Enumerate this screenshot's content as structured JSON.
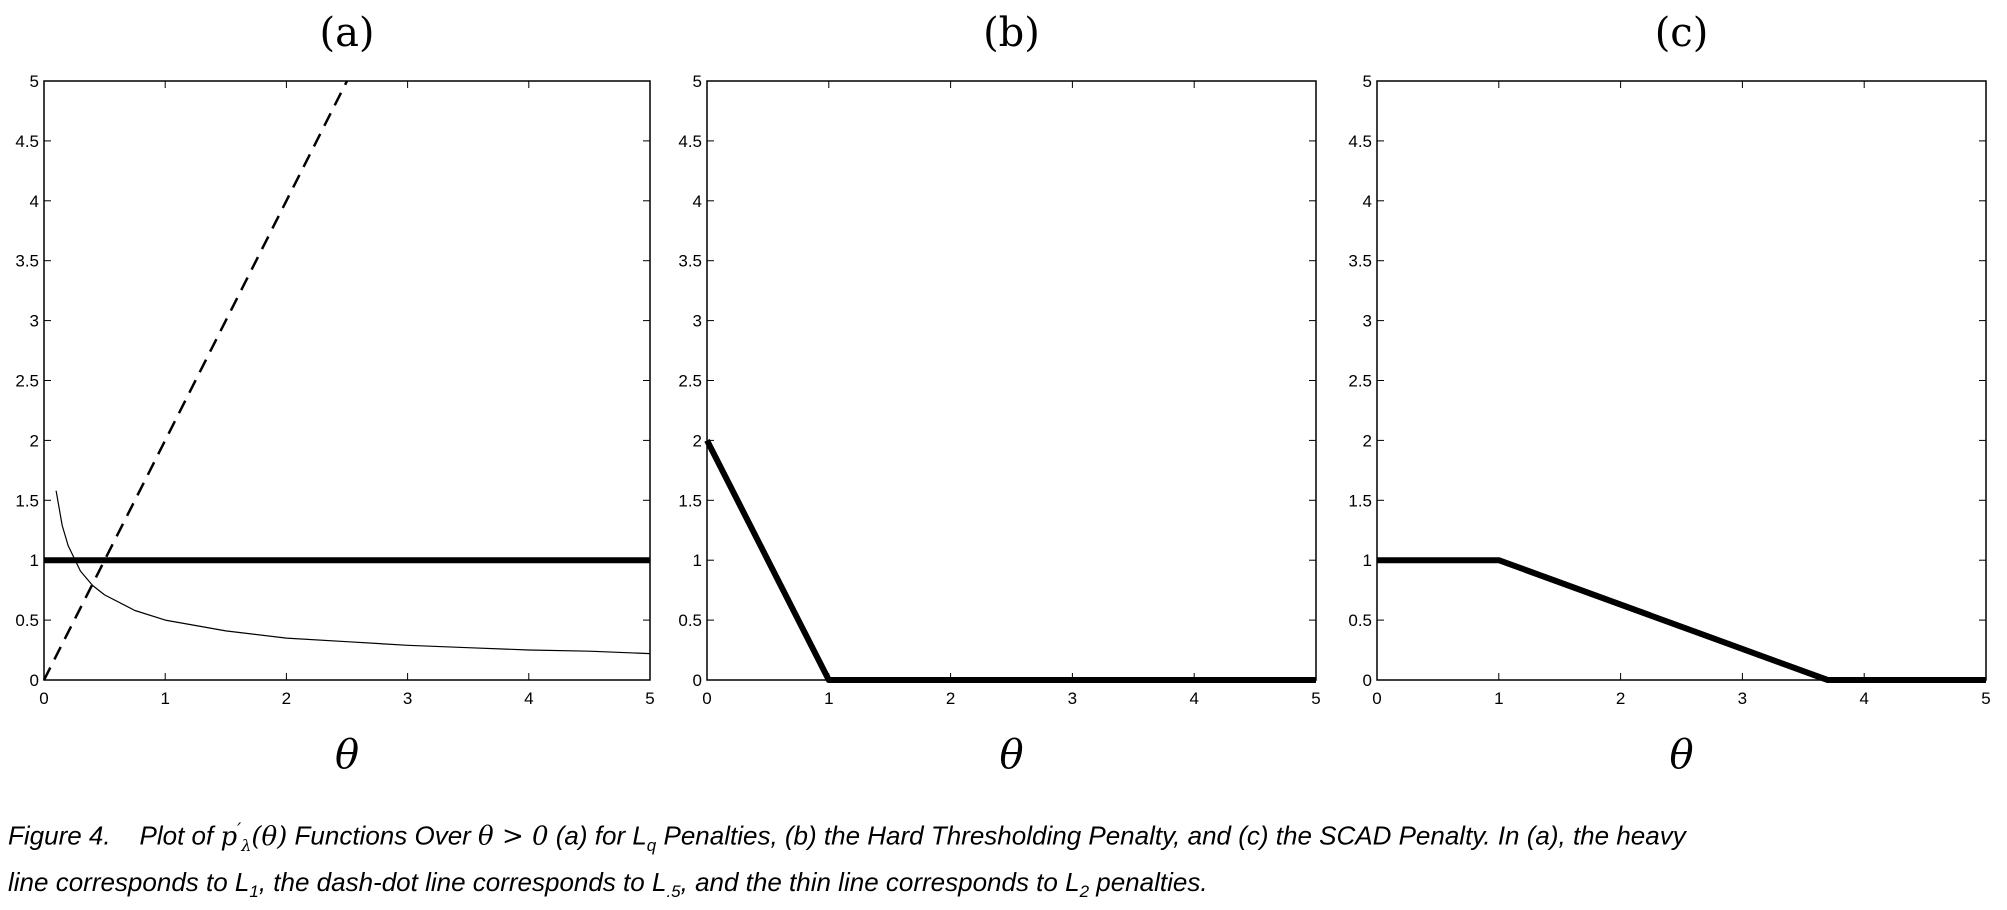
{
  "chart_data": [
    {
      "type": "line",
      "title": "(a)",
      "xlabel": "θ",
      "xlim": [
        0,
        5
      ],
      "ylim": [
        0,
        5
      ],
      "xticks": [
        "0",
        "1",
        "2",
        "3",
        "4",
        "5"
      ],
      "yticks": [
        "0",
        "0.5",
        "1",
        "1.5",
        "2",
        "2.5",
        "3",
        "3.5",
        "4",
        "4.5",
        "5"
      ],
      "grid": false,
      "series": [
        {
          "style": "heavy",
          "x": [
            0,
            5
          ],
          "y": [
            1,
            1
          ]
        },
        {
          "style": "dashed",
          "x": [
            0,
            2.5
          ],
          "y": [
            0,
            5
          ]
        },
        {
          "style": "thin",
          "x": [
            0.1,
            0.15,
            0.2,
            0.3,
            0.4,
            0.5,
            0.75,
            1,
            1.5,
            2,
            2.5,
            3,
            3.5,
            4,
            4.5,
            5
          ],
          "y": [
            1.58,
            1.29,
            1.12,
            0.91,
            0.79,
            0.71,
            0.58,
            0.5,
            0.41,
            0.35,
            0.32,
            0.29,
            0.27,
            0.25,
            0.24,
            0.22
          ]
        }
      ]
    },
    {
      "type": "line",
      "title": "(b)",
      "xlabel": "θ",
      "xlim": [
        0,
        5
      ],
      "ylim": [
        0,
        5
      ],
      "xticks": [
        "0",
        "1",
        "2",
        "3",
        "4",
        "5"
      ],
      "yticks": [
        "0",
        "0.5",
        "1",
        "1.5",
        "2",
        "2.5",
        "3",
        "3.5",
        "4",
        "4.5",
        "5"
      ],
      "grid": false,
      "series": [
        {
          "style": "heavy",
          "x": [
            0,
            1,
            5
          ],
          "y": [
            2,
            0,
            0
          ]
        }
      ]
    },
    {
      "type": "line",
      "title": "(c)",
      "xlabel": "θ",
      "xlim": [
        0,
        5
      ],
      "ylim": [
        0,
        5
      ],
      "xticks": [
        "0",
        "1",
        "2",
        "3",
        "4",
        "5"
      ],
      "yticks": [
        "0",
        "0.5",
        "1",
        "1.5",
        "2",
        "2.5",
        "3",
        "3.5",
        "4",
        "4.5",
        "5"
      ],
      "grid": false,
      "series": [
        {
          "style": "heavy",
          "x": [
            0,
            1,
            3.7,
            5
          ],
          "y": [
            1,
            1,
            0,
            0
          ]
        }
      ]
    }
  ],
  "caption": {
    "figure_label": "Figure 4.",
    "text_1": "Plot of ",
    "func_p": "p",
    "func_prime": "′",
    "func_sub": "λ",
    "func_arg": "(θ)",
    "text_2": " Functions Over ",
    "theta_cond": "θ > 0",
    "text_3": " (a) for L",
    "sub_q": "q",
    "text_4": " Penalties, (b) the Hard Thresholding Penalty, and (c) the SCAD Penalty. In (a), the heavy",
    "line2_1": "line corresponds to L",
    "sub_1": "1",
    "line2_2": ", the dash-dot line corresponds to L",
    "sub_5": ".5",
    "line2_3": ", and the thin line corresponds to L",
    "sub_2": "2",
    "line2_4": " penalties."
  }
}
